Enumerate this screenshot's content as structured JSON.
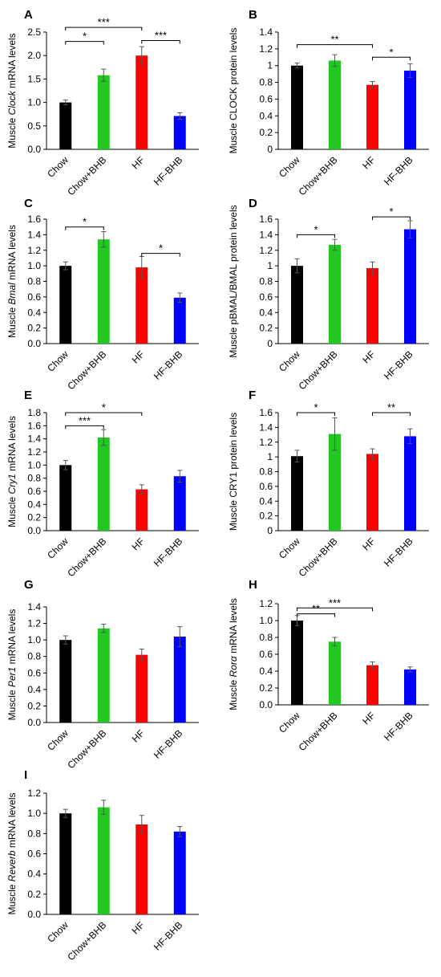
{
  "chart_data": [
    {
      "type": "bar",
      "panel_letter": "A",
      "ylabel_prefix": "Muscle ",
      "ylabel_italic": "Clock",
      "ylabel_suffix": " mRNA levels",
      "categories": [
        "Chow",
        "Chow+BHB",
        "HF",
        "HF-BHB"
      ],
      "values": [
        1.0,
        1.58,
        2.0,
        0.71
      ],
      "errors": [
        0.05,
        0.13,
        0.19,
        0.07
      ],
      "colors": [
        "#000000",
        "#22c722",
        "#ff0000",
        "#0000ff"
      ],
      "ylim": [
        0,
        2.5
      ],
      "yticks": [
        "0.0",
        "0.5",
        "1.0",
        "1.5",
        "2.0",
        "2.5"
      ],
      "annotations": [
        {
          "from": 0,
          "to": 1,
          "text": "*",
          "y": 2.3
        },
        {
          "from": 0,
          "to": 2,
          "text": "***",
          "y": 2.6
        },
        {
          "from": 2,
          "to": 3,
          "text": "***",
          "y": 2.32
        }
      ]
    },
    {
      "type": "bar",
      "panel_letter": "B",
      "ylabel_prefix": "Muscle CLOCK protein levels",
      "ylabel_italic": "",
      "ylabel_suffix": "",
      "categories": [
        "Chow",
        "Chow+BHB",
        "HF",
        "HF-BHB"
      ],
      "values": [
        1.0,
        1.06,
        0.77,
        0.94
      ],
      "errors": [
        0.03,
        0.07,
        0.04,
        0.08
      ],
      "colors": [
        "#000000",
        "#22c722",
        "#ff0000",
        "#0000ff"
      ],
      "ylim": [
        0,
        1.4
      ],
      "yticks": [
        "0",
        "0.2",
        "0.4",
        "0.6",
        "0.8",
        "1",
        "1.2",
        "1.4"
      ],
      "annotations": [
        {
          "from": 0,
          "to": 2,
          "text": "**",
          "y": 1.25
        },
        {
          "from": 2,
          "to": 3,
          "text": "*",
          "y": 1.1
        }
      ]
    },
    {
      "type": "bar",
      "panel_letter": "C",
      "ylabel_prefix": "Muscle ",
      "ylabel_italic": "Bmal",
      "ylabel_suffix": " mRNA levels",
      "categories": [
        "Chow",
        "Chow+BHB",
        "HF",
        "HF-BHB"
      ],
      "values": [
        1.0,
        1.34,
        0.98,
        0.59
      ],
      "errors": [
        0.05,
        0.1,
        0.14,
        0.06
      ],
      "colors": [
        "#000000",
        "#22c722",
        "#ff0000",
        "#0000ff"
      ],
      "ylim": [
        0,
        1.6
      ],
      "yticks": [
        "0.0",
        "0.2",
        "0.4",
        "0.6",
        "0.8",
        "1.0",
        "1.2",
        "1.4",
        "1.6"
      ],
      "annotations": [
        {
          "from": 0,
          "to": 1,
          "text": "*",
          "y": 1.5
        },
        {
          "from": 2,
          "to": 3,
          "text": "*",
          "y": 1.16
        }
      ]
    },
    {
      "type": "bar",
      "panel_letter": "D",
      "ylabel_prefix": "Muscle  pBMAL/BMAL protein levels",
      "ylabel_italic": "",
      "ylabel_suffix": "",
      "categories": [
        "Chow",
        "Chow+BHB",
        "HF",
        "HF-BHB"
      ],
      "values": [
        1.0,
        1.27,
        0.97,
        1.47
      ],
      "errors": [
        0.09,
        0.07,
        0.08,
        0.11
      ],
      "colors": [
        "#000000",
        "#22c722",
        "#ff0000",
        "#0000ff"
      ],
      "ylim": [
        0,
        1.6
      ],
      "yticks": [
        "0",
        "0.2",
        "0.4",
        "0.6",
        "0.8",
        "1",
        "1.2",
        "1.4",
        "1.6"
      ],
      "annotations": [
        {
          "from": 0,
          "to": 1,
          "text": "*",
          "y": 1.4
        },
        {
          "from": 2,
          "to": 3,
          "text": "*",
          "y": 1.63
        }
      ]
    },
    {
      "type": "bar",
      "panel_letter": "E",
      "ylabel_prefix": "Muscle ",
      "ylabel_italic": "Cry1",
      "ylabel_suffix": " mRNA levels",
      "categories": [
        "Chow",
        "Chow+BHB",
        "HF",
        "HF-BHB"
      ],
      "values": [
        1.0,
        1.42,
        0.63,
        0.83
      ],
      "errors": [
        0.07,
        0.12,
        0.07,
        0.09
      ],
      "colors": [
        "#000000",
        "#22c722",
        "#ff0000",
        "#0000ff"
      ],
      "ylim": [
        0,
        1.8
      ],
      "yticks": [
        "0.0",
        "0.2",
        "0.4",
        "0.6",
        "0.8",
        "1.0",
        "1.2",
        "1.4",
        "1.6",
        "1.8"
      ],
      "annotations": [
        {
          "from": 0,
          "to": 1,
          "text": "***",
          "y": 1.6
        },
        {
          "from": 0,
          "to": 2,
          "text": "*",
          "y": 1.8
        }
      ]
    },
    {
      "type": "bar",
      "panel_letter": "F",
      "ylabel_prefix": "Muscle CRY1 protein levels",
      "ylabel_italic": "",
      "ylabel_suffix": "",
      "categories": [
        "Chow",
        "Chow+BHB",
        "HF",
        "HF-BHB"
      ],
      "values": [
        1.01,
        1.31,
        1.04,
        1.28
      ],
      "errors": [
        0.08,
        0.22,
        0.07,
        0.1
      ],
      "colors": [
        "#000000",
        "#22c722",
        "#ff0000",
        "#0000ff"
      ],
      "ylim": [
        0,
        1.6
      ],
      "yticks": [
        "0",
        "0.2",
        "0.4",
        "0.6",
        "0.8",
        "1",
        "1.2",
        "1.4",
        "1.6"
      ],
      "annotations": [
        {
          "from": 0,
          "to": 1,
          "text": "*",
          "y": 1.6
        },
        {
          "from": 2,
          "to": 3,
          "text": "**",
          "y": 1.6
        }
      ]
    },
    {
      "type": "bar",
      "panel_letter": "G",
      "ylabel_prefix": "Muscle ",
      "ylabel_italic": "Per1",
      "ylabel_suffix": " mRNA levels",
      "categories": [
        "Chow",
        "Chow+BHB",
        "HF",
        "HF-BHB"
      ],
      "values": [
        1.0,
        1.14,
        0.82,
        1.04
      ],
      "errors": [
        0.05,
        0.05,
        0.07,
        0.12
      ],
      "colors": [
        "#000000",
        "#22c722",
        "#ff0000",
        "#0000ff"
      ],
      "ylim": [
        0,
        1.4
      ],
      "yticks": [
        "0.0",
        "0.2",
        "0.4",
        "0.6",
        "0.8",
        "1.0",
        "1.2",
        "1.4"
      ],
      "annotations": []
    },
    {
      "type": "bar",
      "panel_letter": "H",
      "ylabel_prefix": "Muscle ",
      "ylabel_italic": "Rorα",
      "ylabel_suffix": " mRNA levels",
      "categories": [
        "Chow",
        "Chow+BHB",
        "HF",
        "HF-BHB"
      ],
      "values": [
        1.0,
        0.75,
        0.47,
        0.42
      ],
      "errors": [
        0.06,
        0.05,
        0.04,
        0.03
      ],
      "colors": [
        "#000000",
        "#22c722",
        "#ff0000",
        "#0000ff"
      ],
      "ylim": [
        0,
        1.2
      ],
      "yticks": [
        "0.0",
        "0.2",
        "0.4",
        "0.6",
        "0.8",
        "1.0",
        "1.2"
      ],
      "annotations": [
        {
          "from": 0,
          "to": 1,
          "text": "**",
          "y": 1.08
        },
        {
          "from": 0,
          "to": 2,
          "text": "***",
          "y": 1.15
        }
      ]
    },
    {
      "type": "bar",
      "panel_letter": "I",
      "ylabel_prefix": "Muscle ",
      "ylabel_italic": "Reverb",
      "ylabel_suffix": " mRNA levels",
      "categories": [
        "Chow",
        "Chow+BHB",
        "HF",
        "HF-BHB"
      ],
      "values": [
        1.0,
        1.06,
        0.89,
        0.82
      ],
      "errors": [
        0.04,
        0.07,
        0.09,
        0.05
      ],
      "colors": [
        "#000000",
        "#22c722",
        "#ff0000",
        "#0000ff"
      ],
      "ylim": [
        0,
        1.2
      ],
      "yticks": [
        "0.0",
        "0.2",
        "0.4",
        "0.6",
        "0.8",
        "1.0",
        "1.2"
      ],
      "annotations": []
    }
  ]
}
